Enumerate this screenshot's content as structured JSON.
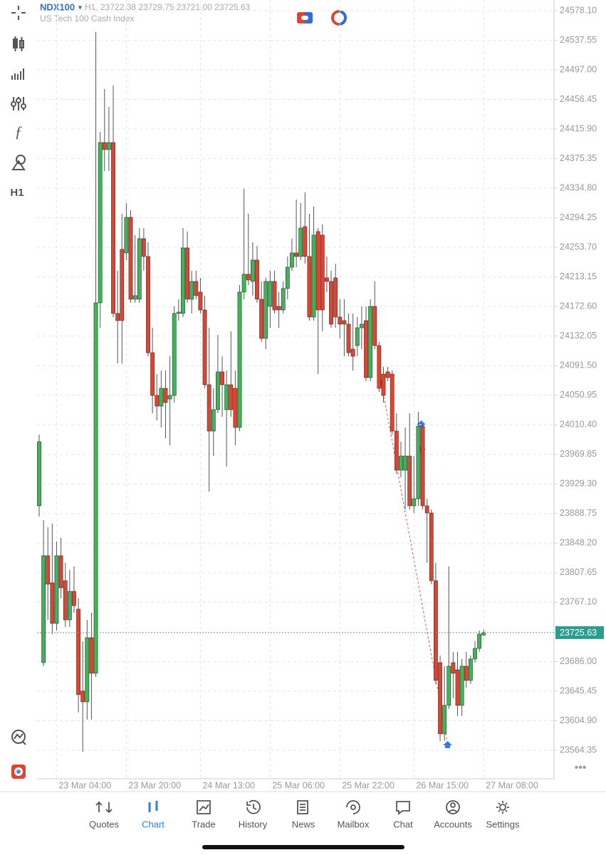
{
  "chart_data": {
    "type": "candlestick",
    "symbol": "NDX100",
    "ohlc_header": "H1, 23722.38 23729.75 23721.00 23725.63",
    "subtitle": "US Tech 100 Cash Index",
    "up_color": "#3fb55a",
    "down_color": "#e2432f",
    "grid": true,
    "current_price": 23725.63,
    "current_price_color": "#2a9d8f",
    "categories": [
      null,
      null,
      null,
      null,
      "23 Mar 04:00",
      null,
      null,
      null,
      null,
      null,
      null,
      null,
      null,
      null,
      null,
      null,
      null,
      null,
      null,
      null,
      "23 Mar 20:00",
      null,
      null,
      null,
      null,
      null,
      null,
      null,
      null,
      null,
      null,
      null,
      null,
      null,
      null,
      null,
      null,
      "24 Mar 13:00",
      null,
      null,
      null,
      null,
      null,
      null,
      null,
      null,
      null,
      null,
      null,
      null,
      null,
      null,
      null,
      "25 Mar 06:00",
      null,
      null,
      null,
      null,
      null,
      null,
      null,
      null,
      null,
      null,
      null,
      null,
      null,
      null,
      null,
      "25 Mar 22:00",
      null,
      null,
      null,
      null,
      null,
      null,
      null,
      null,
      null,
      null,
      null,
      null,
      null,
      null,
      null,
      null,
      "26 Mar 15:00",
      null,
      null,
      null,
      null,
      null,
      null,
      null,
      null,
      null,
      null,
      null,
      null,
      null,
      null,
      null,
      "27 Mar 08:00"
    ],
    "open": [
      23899.4,
      23684.5,
      23831.0,
      23793.9,
      23738.2,
      23831.0,
      23796.8,
      23743.1,
      23782.2,
      23757.8,
      23645.5,
      23630.8,
      23718.7,
      23669.9,
      24177.7,
      24397.4,
      24387.7,
      24397.4,
      24163.1,
      24251.0,
      24246.1,
      24294.9,
      24182.6,
      24182.6,
      24265.6,
      24241.2,
      24109.3,
      24050.7,
      24036.1,
      24060.5,
      24045.8,
      24050.7,
      24163.1,
      24163.1,
      24252.9,
      24182.6,
      24207.0,
      24192.4,
      24167.9,
      24065.4,
      24001.9,
      24031.2,
      24083.0,
      24031.2,
      24065.4,
      24060.5,
      24006.8,
      24192.4,
      24216.8,
      24207.0,
      24236.3,
      24182.6,
      24128.9,
      24172.8,
      24207.0,
      24172.8,
      24167.9,
      24197.3,
      24226.5,
      24246.1,
      24241.2,
      24282.2,
      24241.2,
      24158.2,
      24275.4,
      24270.5,
      24211.9,
      24207.0,
      24211.9,
      24158.2,
      24153.3,
      24148.4,
      24114.2,
      24119.1,
      24143.5,
      24153.3,
      24075.2,
      24172.8,
      24119.1,
      24080.0,
      24083.0,
      24080.0,
      24001.9,
      23948.2,
      23948.2,
      23967.7,
      23899.4,
      23909.1,
      24008.7,
      23899.4,
      23889.6,
      23796.8,
      23684.5,
      23586.9,
      23625.9,
      23684.5,
      23674.7,
      23625.9,
      23679.6,
      23660.1,
      23689.4,
      23704.0,
      23722.38
    ],
    "high": [
      23997.0,
      23879.8,
      23870.1,
      23875.0,
      23850.5,
      23855.4,
      23821.2,
      23811.5,
      23816.4,
      23772.4,
      23713.8,
      23743.1,
      23752.9,
      24548.8,
      24412.1,
      24470.7,
      24446.3,
      24475.6,
      24221.7,
      24299.8,
      24314.4,
      24304.7,
      24270.5,
      24280.2,
      24280.2,
      24260.7,
      24143.5,
      24080.0,
      24084.9,
      24084.9,
      24104.4,
      24172.8,
      24182.6,
      24280.2,
      24275.4,
      24221.7,
      24221.7,
      24211.9,
      24187.5,
      24143.5,
      24060.5,
      24133.7,
      24104.4,
      24084.9,
      24138.6,
      24084.9,
      24202.1,
      24334.0,
      24299.8,
      24260.7,
      24255.8,
      24207.0,
      24211.9,
      24221.7,
      24221.7,
      24192.4,
      24207.0,
      24241.2,
      24265.6,
      24319.3,
      24314.4,
      24329.1,
      24299.8,
      24309.6,
      24280.2,
      24285.1,
      24241.2,
      24221.7,
      24231.4,
      24182.6,
      24182.6,
      24163.1,
      24163.1,
      24158.2,
      24172.8,
      24172.8,
      24182.6,
      24207.0,
      24124.0,
      24089.8,
      24089.8,
      24084.9,
      24026.3,
      23987.3,
      24006.8,
      24026.3,
      23967.7,
      24028.3,
      24011.7,
      23909.1,
      23894.5,
      23821.2,
      23694.3,
      23679.6,
      23816.4,
      23699.2,
      23699.2,
      23689.4,
      23699.2,
      23694.3,
      23713.8,
      23728.5,
      23729.75
    ],
    "low": [
      23884.7,
      23679.6,
      23743.1,
      23723.6,
      23728.5,
      23772.4,
      23733.4,
      23733.4,
      23752.9,
      23616.2,
      23562.4,
      23606.4,
      23606.4,
      23665.0,
      24143.5,
      24358.4,
      24358.4,
      24158.2,
      24094.7,
      24094.7,
      24236.3,
      24177.7,
      24177.7,
      24177.7,
      24221.7,
      24104.4,
      24026.3,
      24016.5,
      24006.8,
      23992.1,
      23982.4,
      24041.0,
      24153.3,
      24158.2,
      24177.7,
      24163.1,
      24182.6,
      24163.1,
      24060.5,
      23918.9,
      23967.7,
      24026.3,
      24021.4,
      23953.1,
      24021.4,
      23982.4,
      24001.9,
      24182.6,
      24202.1,
      24187.5,
      24177.7,
      24124.0,
      24114.2,
      24143.5,
      24163.1,
      24143.5,
      24163.1,
      24182.6,
      24221.7,
      24226.5,
      24236.3,
      24231.4,
      24153.3,
      24153.3,
      24080.0,
      24138.6,
      24192.4,
      24143.5,
      24143.5,
      24128.9,
      24104.4,
      24104.4,
      24084.9,
      24104.4,
      24114.2,
      24070.3,
      24070.3,
      24114.2,
      24055.6,
      24041.0,
      24070.3,
      23997.0,
      23943.3,
      23938.4,
      23894.5,
      23894.5,
      23889.6,
      23899.4,
      23894.5,
      23821.2,
      23792.0,
      23655.2,
      23577.1,
      23577.1,
      23621.0,
      23635.7,
      23611.3,
      23611.3,
      23650.3,
      23655.2,
      23684.5,
      23699.2,
      23721.0
    ],
    "close": [
      23987.3,
      23831.0,
      23792.0,
      23738.2,
      23831.0,
      23787.1,
      23743.1,
      23782.2,
      23762.6,
      23640.6,
      23630.8,
      23718.7,
      23669.9,
      24177.7,
      24397.4,
      24387.7,
      24397.4,
      24163.1,
      24153.3,
      24153.3,
      24294.9,
      24182.6,
      24187.5,
      24265.6,
      24241.2,
      24109.3,
      24050.7,
      24036.1,
      24060.5,
      24041.0,
      24050.7,
      24163.1,
      24165.0,
      24252.9,
      24182.6,
      24207.0,
      24187.5,
      24167.9,
      24065.4,
      24001.9,
      24031.2,
      24083.0,
      24065.4,
      24065.4,
      24031.2,
      24006.8,
      24192.4,
      24216.8,
      24209.0,
      24236.3,
      24182.6,
      24128.9,
      24207.0,
      24207.0,
      24167.9,
      24167.9,
      24197.3,
      24226.5,
      24246.1,
      24241.2,
      24280.2,
      24241.2,
      24158.2,
      24270.5,
      24167.9,
      24167.9,
      24207.0,
      24148.4,
      24158.2,
      24148.4,
      24148.4,
      24109.3,
      24104.4,
      24143.5,
      24148.4,
      24075.2,
      24172.8,
      24119.1,
      24060.5,
      24050.7,
      24075.2,
      24001.9,
      23948.2,
      23967.7,
      23967.7,
      23899.4,
      23909.1,
      24008.7,
      23899.4,
      23889.6,
      23796.8,
      23660.1,
      23586.9,
      23625.9,
      23679.6,
      23669.9,
      23625.9,
      23679.6,
      23660.1,
      23689.4,
      23704.0,
      23723.6,
      23725.63
    ],
    "ylim": [
      23525.3,
      24592.75
    ],
    "yticks": [
      {
        "value": 24578.1,
        "label": "24578.10"
      },
      24537.55,
      {
        "value": 24497,
        "label": "24497.00"
      },
      24456.45,
      {
        "value": 24415.9,
        "label": "24415.90"
      },
      24375.35,
      {
        "value": 24334.8,
        "label": "24334.80"
      },
      24294.25,
      {
        "value": 24253.7,
        "label": "24253.70"
      },
      24213.15,
      {
        "value": 24172.6,
        "label": "24172.60"
      },
      24132.05,
      {
        "value": 24091.5,
        "label": "24091.50"
      },
      24050.95,
      {
        "value": 24010.4,
        "label": "24010.40"
      },
      23969.85,
      {
        "value": 23929.3,
        "label": "23929.30"
      },
      23888.75,
      {
        "value": 23848.2,
        "label": "23848.20"
      },
      23807.65,
      {
        "value": 23767.1,
        "label": "23767.10"
      },
      {
        "value": 23686,
        "label": "23686.00"
      },
      23645.45,
      {
        "value": 23604.9,
        "label": "23604.90"
      },
      23564.35
    ]
  },
  "tabs": [
    "Quotes",
    "Chart",
    "Trade",
    "History",
    "News",
    "Mailbox",
    "Chat",
    "Accounts",
    "Settings"
  ],
  "active_tab": "Chart"
}
